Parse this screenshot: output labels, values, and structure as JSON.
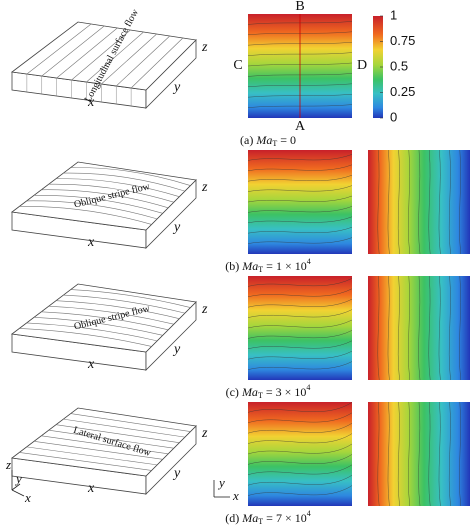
{
  "panels": [
    {
      "box_label": "Longitudinal surface flow",
      "axes": {
        "z": "z",
        "x": "x",
        "y": "y"
      },
      "points": {
        "top": "B",
        "bottom": "A",
        "left": "C",
        "right": "D"
      },
      "caption": {
        "prefix": "(a)",
        "symbol": "Ma",
        "subscript": "T",
        "rest": "= 0"
      }
    },
    {
      "box_label": "Oblique stripe flow",
      "axes": {
        "z": "z",
        "x": "x",
        "y": "y"
      },
      "caption": {
        "prefix": "(b)",
        "symbol": "Ma",
        "subscript": "T",
        "rest": "= 1 × 10",
        "exponent": "4"
      }
    },
    {
      "box_label": "Oblique stripe flow",
      "axes": {
        "z": "z",
        "x": "x",
        "y": "y"
      },
      "caption": {
        "prefix": "(c)",
        "symbol": "Ma",
        "subscript": "T",
        "rest": "= 3 × 10",
        "exponent": "4"
      }
    },
    {
      "box_label": "Lateral surface flow",
      "axes": {
        "z": "z",
        "x": "x",
        "y": "y"
      },
      "caption": {
        "prefix": "(d)",
        "symbol": "Ma",
        "subscript": "T",
        "rest": "= 7 × 10",
        "exponent": "4"
      }
    }
  ],
  "colorbar": {
    "ticks": [
      1,
      0.75,
      0.5,
      0.25,
      0
    ]
  },
  "triad_3d": {
    "z": "z",
    "y": "y",
    "x": "x"
  },
  "triad_2d": {
    "y": "y",
    "x": "x"
  }
}
